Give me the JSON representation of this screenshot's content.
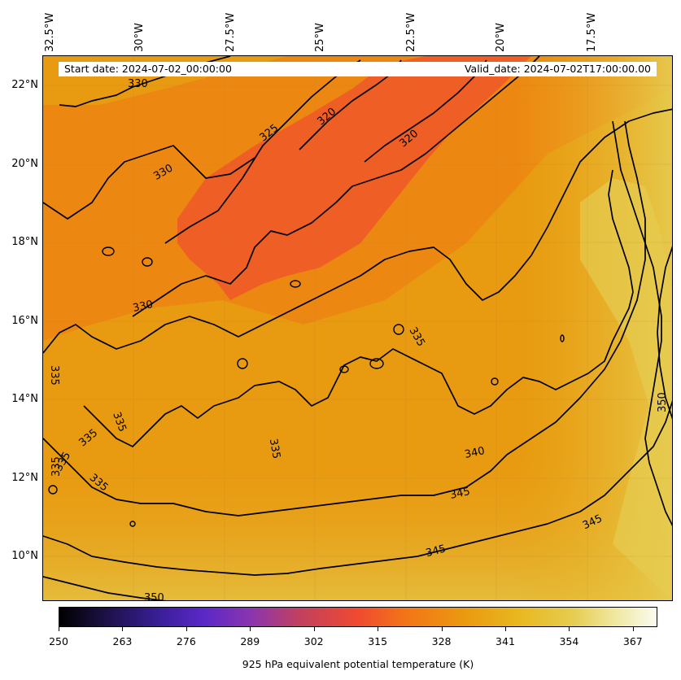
{
  "map": {
    "info": {
      "start_date": "Start date: 2024-07-02_00:00:00",
      "valid_date": "Valid_date: 2024-07-02T17:00:00.00"
    },
    "longitude_labels": [
      "32.5°W",
      "30°W",
      "27.5°W",
      "25°W",
      "22.5°W",
      "20°W",
      "17.5°W"
    ],
    "latitude_labels": [
      "22°N",
      "20°N",
      "18°N",
      "16°N",
      "14°N",
      "12°N",
      "10°N"
    ],
    "contour_labels": [
      "330",
      "325",
      "320",
      "320",
      "330",
      "330",
      "335",
      "335",
      "335",
      "335",
      "335",
      "335",
      "335",
      "335",
      "340",
      "345",
      "345",
      "345",
      "350"
    ],
    "colors": {
      "field_base": "#e89a10",
      "field_warm_core": "#f05a28",
      "field_high": "#e6cc50",
      "contour": "#000000"
    }
  },
  "colorbar": {
    "label": "925 hPa equivalent potential temperature (K)",
    "ticks": [
      "250",
      "263",
      "276",
      "289",
      "302",
      "315",
      "328",
      "341",
      "354",
      "367"
    ],
    "range": [
      250,
      372
    ]
  }
}
